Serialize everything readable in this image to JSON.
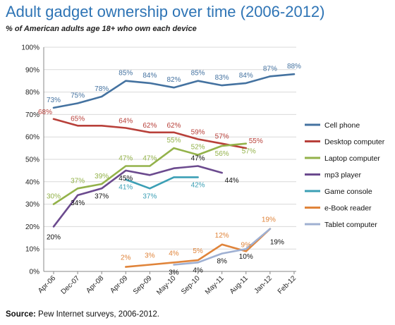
{
  "chart_data": {
    "type": "line",
    "title": "Adult gadget ownership over time (2006-2012)",
    "subtitle": "% of American adults age 18+ who own each device",
    "source_label": "Source:",
    "source_text": "Pew Internet surveys, 2006-2012.",
    "x_ticks": [
      "Apr-06",
      "Dec-07",
      "Apr-08",
      "Apr-09",
      "Sep-09",
      "May-10",
      "Sep-10",
      "May-11",
      "Aug-11",
      "Jan-12",
      "Feb-12"
    ],
    "y_ticks": [
      "0%",
      "10%",
      "20%",
      "30%",
      "40%",
      "50%",
      "60%",
      "70%",
      "80%",
      "90%",
      "100%"
    ],
    "ylim": [
      0,
      100
    ],
    "grid": "horizontal",
    "legend_position": "right",
    "series": [
      {
        "name": "Cell phone",
        "color": "#4472a0",
        "points": [
          [
            0,
            73
          ],
          [
            1,
            75
          ],
          [
            2,
            78
          ],
          [
            3,
            85
          ],
          [
            4,
            84
          ],
          [
            5,
            82
          ],
          [
            6,
            85
          ],
          [
            7,
            83
          ],
          [
            8,
            84
          ],
          [
            9,
            87
          ],
          [
            10,
            88
          ]
        ],
        "labels": [
          {
            "x": 0,
            "value": 73,
            "text": "73%"
          },
          {
            "x": 1,
            "value": 75,
            "text": "75%"
          },
          {
            "x": 2,
            "value": 78,
            "text": "78%"
          },
          {
            "x": 3,
            "value": 85,
            "text": "85%"
          },
          {
            "x": 4,
            "value": 84,
            "text": "84%"
          },
          {
            "x": 5,
            "value": 82,
            "text": "82%"
          },
          {
            "x": 6,
            "value": 85,
            "text": "85%"
          },
          {
            "x": 7,
            "value": 83,
            "text": "83%"
          },
          {
            "x": 8,
            "value": 84,
            "text": "84%"
          },
          {
            "x": 9,
            "value": 87,
            "text": "87%"
          },
          {
            "x": 10,
            "value": 88,
            "text": "88%"
          }
        ]
      },
      {
        "name": "Desktop computer",
        "color": "#b8403a",
        "points": [
          [
            0,
            68
          ],
          [
            1,
            65
          ],
          [
            2,
            65
          ],
          [
            3,
            64
          ],
          [
            4,
            62
          ],
          [
            5,
            62
          ],
          [
            6,
            59
          ],
          [
            7,
            57
          ],
          [
            8,
            55
          ]
        ],
        "labels": [
          {
            "x": 0,
            "value": 68,
            "text": "68%"
          },
          {
            "x": 1,
            "value": 65,
            "text": "65%"
          },
          {
            "x": 3,
            "value": 64,
            "text": "64%"
          },
          {
            "x": 4,
            "value": 62,
            "text": "62%"
          },
          {
            "x": 5,
            "value": 62,
            "text": "62%"
          },
          {
            "x": 6,
            "value": 59,
            "text": "59%"
          },
          {
            "x": 7,
            "value": 57,
            "text": "57%"
          },
          {
            "x": 8,
            "value": 55,
            "text": "55%"
          }
        ]
      },
      {
        "name": "Laptop computer",
        "color": "#93b24a",
        "points": [
          [
            0,
            30
          ],
          [
            1,
            37
          ],
          [
            2,
            39
          ],
          [
            3,
            47
          ],
          [
            4,
            47
          ],
          [
            5,
            55
          ],
          [
            6,
            52
          ],
          [
            7,
            56
          ],
          [
            8,
            57
          ]
        ],
        "labels": [
          {
            "x": 0,
            "value": 30,
            "text": "30%"
          },
          {
            "x": 1,
            "value": 37,
            "text": "37%"
          },
          {
            "x": 2,
            "value": 39,
            "text": "39%"
          },
          {
            "x": 3,
            "value": 47,
            "text": "47%"
          },
          {
            "x": 4,
            "value": 47,
            "text": "47%"
          },
          {
            "x": 5,
            "value": 55,
            "text": "55%"
          },
          {
            "x": 6,
            "value": 52,
            "text": "52%"
          },
          {
            "x": 7,
            "value": 56,
            "text": "56%"
          },
          {
            "x": 8,
            "value": 57,
            "text": "57%"
          }
        ]
      },
      {
        "name": "mp3 player",
        "color": "#6b4a8e",
        "points": [
          [
            0,
            20
          ],
          [
            1,
            34
          ],
          [
            2,
            37
          ],
          [
            3,
            45
          ],
          [
            4,
            43
          ],
          [
            5,
            46
          ],
          [
            6,
            47
          ],
          [
            7,
            44
          ]
        ],
        "labels": [
          {
            "x": 0,
            "value": 20,
            "text": "20%"
          },
          {
            "x": 1,
            "value": 34,
            "text": "34%"
          },
          {
            "x": 2,
            "value": 37,
            "text": "37%"
          },
          {
            "x": 3,
            "value": 45,
            "text": "45%"
          },
          {
            "x": 6,
            "value": 47,
            "text": "47%"
          },
          {
            "x": 7,
            "value": 44,
            "text": "44%"
          }
        ]
      },
      {
        "name": "Game console",
        "color": "#3b9fb5",
        "points": [
          [
            3,
            41
          ],
          [
            4,
            37
          ],
          [
            5,
            42
          ],
          [
            6,
            42
          ]
        ],
        "labels": [
          {
            "x": 3,
            "value": 41,
            "text": "41%"
          },
          {
            "x": 4,
            "value": 37,
            "text": "37%"
          },
          {
            "x": 6,
            "value": 42,
            "text": "42%"
          }
        ]
      },
      {
        "name": "e-Book reader",
        "color": "#e0843a",
        "points": [
          [
            3,
            2
          ],
          [
            4,
            3
          ],
          [
            5,
            4
          ],
          [
            6,
            5
          ],
          [
            7,
            12
          ],
          [
            8,
            9
          ],
          [
            9,
            19
          ]
        ],
        "labels": [
          {
            "x": 3,
            "value": 2,
            "text": "2%"
          },
          {
            "x": 4,
            "value": 3,
            "text": "3%"
          },
          {
            "x": 5,
            "value": 4,
            "text": "4%"
          },
          {
            "x": 6,
            "value": 5,
            "text": "5%"
          },
          {
            "x": 7,
            "value": 12,
            "text": "12%"
          },
          {
            "x": 8,
            "value": 9,
            "text": "9%"
          },
          {
            "x": 9,
            "value": 19,
            "text": "19%"
          }
        ]
      },
      {
        "name": "Tablet computer",
        "color": "#9fb0d2",
        "points": [
          [
            5,
            3
          ],
          [
            6,
            4
          ],
          [
            7,
            8
          ],
          [
            8,
            10
          ],
          [
            9,
            19
          ]
        ],
        "labels": [
          {
            "x": 5,
            "value": 3,
            "text": "3%"
          },
          {
            "x": 6,
            "value": 4,
            "text": "4%"
          },
          {
            "x": 7,
            "value": 8,
            "text": "8%"
          },
          {
            "x": 8,
            "value": 10,
            "text": "10%"
          },
          {
            "x": 9,
            "value": 19,
            "text": "19%"
          }
        ]
      }
    ]
  }
}
